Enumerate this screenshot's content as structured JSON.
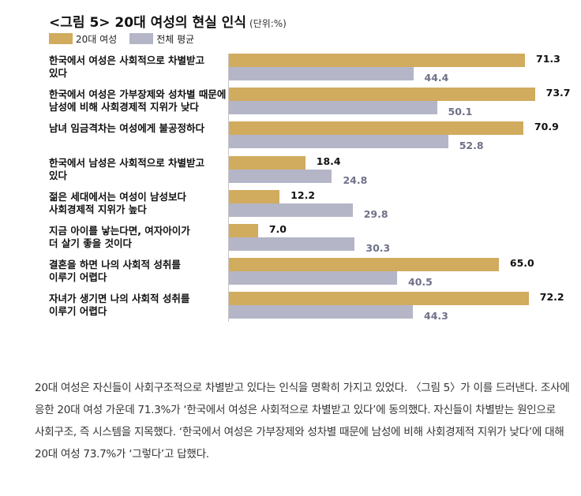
{
  "chart_data": {
    "type": "bar",
    "title": "<그림 5> 20대 여성의 현실 인식",
    "unit_label": "(단위:%)",
    "categories": [
      [
        "한국에서 여성은 사회적으로 차별받고",
        "있다"
      ],
      [
        "한국에서 여성은 가부장제와 성차별 때문에",
        "남성에 비해 사회경제적 지위가 낮다"
      ],
      [
        "남녀 임금격차는 여성에게 불공정하다"
      ],
      [
        "한국에서 남성은 사회적으로 차별받고",
        "있다"
      ],
      [
        "젊은 세대에서는 여성이 남성보다",
        "사회경제적 지위가 높다"
      ],
      [
        "지금 아이를 낳는다면, 여자아이가",
        "더 살기 좋을 것이다"
      ],
      [
        "결혼을 하면 나의 사회적 성취를",
        "이루기 어렵다"
      ],
      [
        "자녀가 생기면 나의 사회적 성취를",
        "이루기 어렵다"
      ]
    ],
    "series": [
      {
        "name": "20대 여성",
        "color": "#d1ab5e",
        "values": [
          71.3,
          73.7,
          70.9,
          18.4,
          12.2,
          7.0,
          65.0,
          72.2
        ],
        "labels": [
          "71.3",
          "73.7",
          "70.9",
          "18.4",
          "12.2",
          "7.0",
          "65.0",
          "72.2"
        ]
      },
      {
        "name": "전체 평균",
        "color": "#b4b5c7",
        "values": [
          44.4,
          50.1,
          52.8,
          24.8,
          29.8,
          30.3,
          40.5,
          44.3
        ],
        "labels": [
          "44.4",
          "50.1",
          "52.8",
          "24.8",
          "29.8",
          "30.3",
          "40.5",
          "44.3"
        ]
      }
    ],
    "orientation": "horizontal",
    "xlim": [
      0,
      100
    ],
    "grid": false,
    "legend_position": "top-left"
  },
  "paragraph": "20대 여성은 자신들이 사회구조적으로 차별받고 있다는 인식을 명확히 가지고 있었다. 〈그림 5〉가 이를 드러낸다. 조사에 응한 20대 여성 가운데 71.3%가 ‘한국에서 여성은 사회적으로 차별받고 있다’에 동의했다. 자신들이 차별받는 원인으로 사회구조, 즉 시스템을 지목했다. ‘한국에서 여성은 가부장제와 성차별 때문에 남성에 비해 사회경제적 지위가 낮다’에 대해 20대 여성 73.7%가 ‘그렇다’고 답했다."
}
